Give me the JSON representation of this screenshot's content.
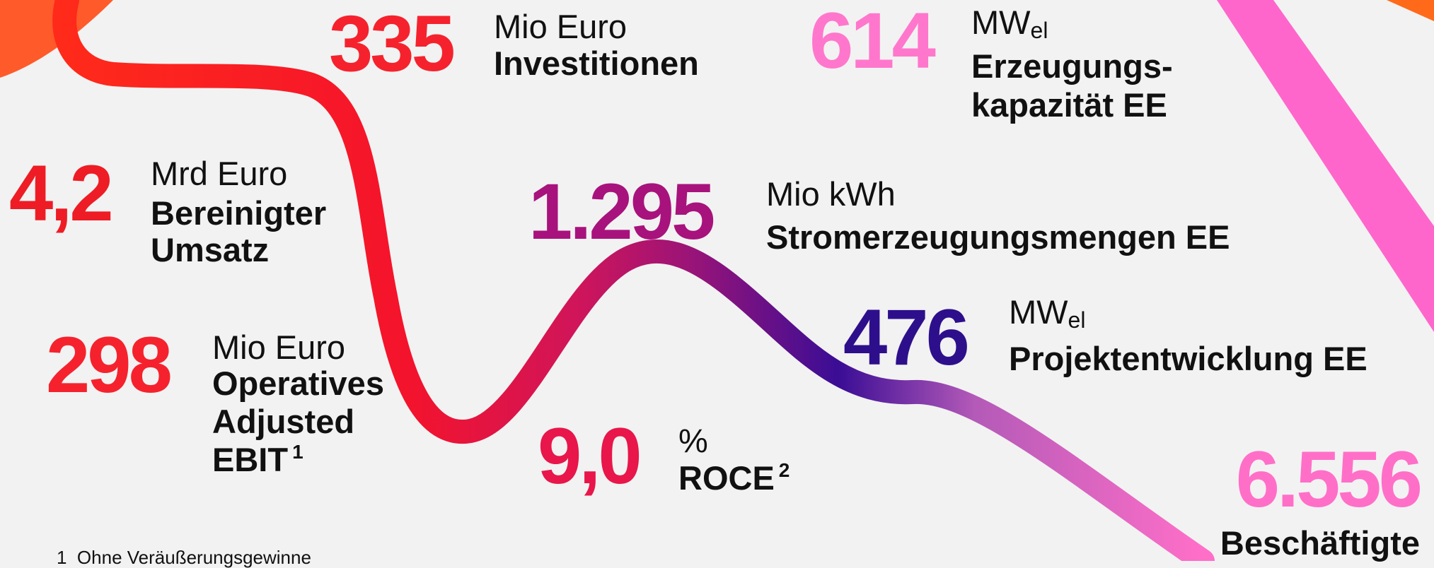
{
  "kpis": [
    {
      "value": "335",
      "unit": "Mio Euro",
      "label": [
        "Investitionen"
      ]
    },
    {
      "value": "614",
      "unit": "MW",
      "unit_sub": "el",
      "label": [
        "Erzeugungs-",
        "kapazität EE"
      ]
    },
    {
      "value": "4,2",
      "unit": "Mrd Euro",
      "label": [
        "Bereinigter",
        "Umsatz"
      ]
    },
    {
      "value": "1.295",
      "unit": "Mio kWh",
      "label": [
        "Stromerzeugungsmengen EE"
      ]
    },
    {
      "value": "298",
      "unit": "Mio Euro",
      "label": [
        "Operatives",
        "Adjusted",
        "EBIT"
      ],
      "note": "1"
    },
    {
      "value": "476",
      "unit": "MW",
      "unit_sub": "el",
      "label": [
        "Projektentwicklung EE"
      ]
    },
    {
      "value": "9,0",
      "unit": "%",
      "label": [
        "ROCE"
      ],
      "note": "2"
    },
    {
      "value": "6.556",
      "label": [
        "Beschäftigte"
      ]
    }
  ],
  "footnotes": [
    {
      "marker": "1",
      "text": "Ohne Veräußerungsgewinne"
    }
  ]
}
